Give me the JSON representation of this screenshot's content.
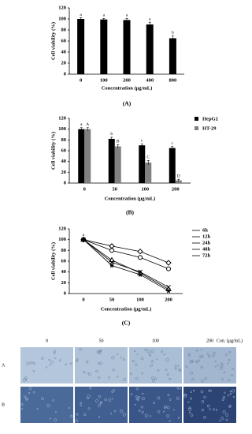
{
  "chart_data": [
    {
      "type": "bar",
      "panel_label": "(A)",
      "xlabel": "Concentration (μg/mL)",
      "ylabel": "Cell viability (%)",
      "categories": [
        "0",
        "100",
        "200",
        "400",
        "800"
      ],
      "values": [
        100,
        99,
        98,
        90,
        65
      ],
      "errors": [
        2,
        2,
        3,
        4,
        5
      ],
      "annotations": [
        "a",
        "a",
        "a",
        "a",
        "b"
      ],
      "color": "#000000",
      "ylim": [
        0,
        120
      ],
      "yticks": [
        0,
        20,
        40,
        60,
        80,
        100,
        120
      ]
    },
    {
      "type": "bar",
      "panel_label": "(B)",
      "xlabel": "Concentration (μg/mL)",
      "ylabel": "Cell viability (%)",
      "categories": [
        "0",
        "50",
        "100",
        "200"
      ],
      "series": [
        {
          "name": "HepG2",
          "color": "#000000",
          "values": [
            100,
            82,
            70,
            65
          ],
          "errors": [
            3,
            3,
            3,
            3
          ],
          "annotations": [
            "a",
            "b",
            "c",
            "c"
          ]
        },
        {
          "name": "HT-29",
          "color": "#808080",
          "values": [
            100,
            68,
            38,
            5
          ],
          "errors": [
            3,
            3,
            4,
            2
          ],
          "annotations": [
            "A",
            "B",
            "C",
            "D"
          ]
        }
      ],
      "ylim": [
        0,
        120
      ],
      "yticks": [
        0,
        20,
        40,
        60,
        80,
        100,
        120
      ]
    },
    {
      "type": "line",
      "panel_label": "(C)",
      "xlabel": "Concentration (μg/mL)",
      "ylabel": "Cell viability (%)",
      "categories": [
        "0",
        "50",
        "100",
        "200"
      ],
      "annotation": "a",
      "series": [
        {
          "name": "6h",
          "color": "#000000",
          "marker": "diamond",
          "values": [
            100,
            88,
            78,
            57
          ]
        },
        {
          "name": "12h",
          "color": "#000000",
          "marker": "circle",
          "values": [
            100,
            80,
            67,
            46
          ]
        },
        {
          "name": "24h",
          "color": "#000000",
          "marker": "triangle",
          "values": [
            100,
            62,
            38,
            8
          ]
        },
        {
          "name": "48h",
          "color": "#000000",
          "marker": "cross",
          "values": [
            100,
            58,
            40,
            12
          ]
        },
        {
          "name": "72h",
          "color": "#000000",
          "marker": "star",
          "values": [
            100,
            52,
            35,
            5
          ]
        }
      ],
      "ylim": [
        0,
        120
      ],
      "yticks": [
        0,
        20,
        40,
        60,
        80,
        100,
        120
      ]
    }
  ],
  "micrographs": {
    "columns": [
      "0",
      "50",
      "100",
      "200"
    ],
    "unit": "Con. (μg/mL)",
    "rows": [
      "A",
      "B"
    ]
  }
}
